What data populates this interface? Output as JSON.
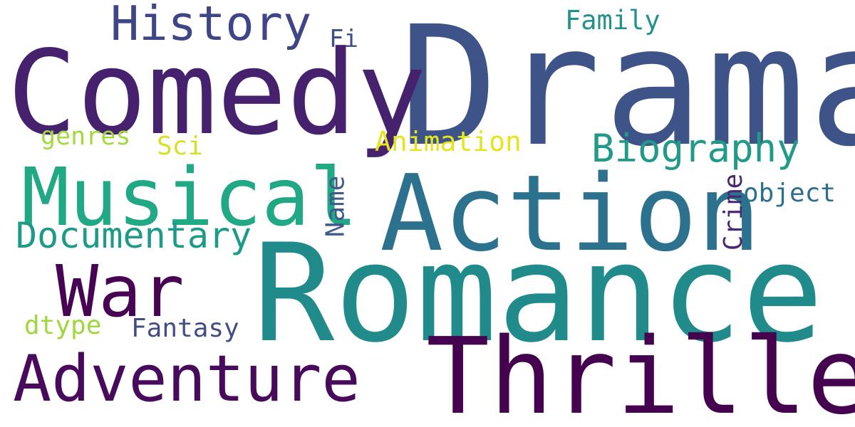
{
  "words": {
    "drama": {
      "text": "Drama",
      "color": "#3e5388"
    },
    "comedy": {
      "text": "Comedy",
      "color": "#46216d"
    },
    "romance": {
      "text": "Romance",
      "color": "#218b8c"
    },
    "action": {
      "text": "Action",
      "color": "#2c718e"
    },
    "thriller": {
      "text": "Thriller",
      "color": "#44024f"
    },
    "musical": {
      "text": "Musical",
      "color": "#21a884"
    },
    "adventure": {
      "text": "Adventure",
      "color": "#480b5c"
    },
    "war": {
      "text": "War",
      "color": "#460452"
    },
    "history": {
      "text": "History",
      "color": "#3f4688"
    },
    "documentary": {
      "text": "Documentary",
      "color": "#1e9a88"
    },
    "biography": {
      "text": "Biography",
      "color": "#219a88"
    },
    "animation": {
      "text": "Animation",
      "color": "#e6e41d"
    },
    "family": {
      "text": "Family",
      "color": "#23928c"
    },
    "fantasy": {
      "text": "Fantasy",
      "color": "#414e86"
    },
    "object": {
      "text": "object",
      "color": "#2d6f8e"
    },
    "genres": {
      "text": "genres",
      "color": "#a2d93c"
    },
    "dtype": {
      "text": "dtype",
      "color": "#9fd83d"
    },
    "sci": {
      "text": "Sci",
      "color": "#d6e029"
    },
    "fi": {
      "text": "Fi",
      "color": "#3d4d8a"
    },
    "name": {
      "text": "Name",
      "color": "#3e5a8b"
    },
    "crime": {
      "text": "Crime",
      "color": "#4a2870"
    }
  }
}
